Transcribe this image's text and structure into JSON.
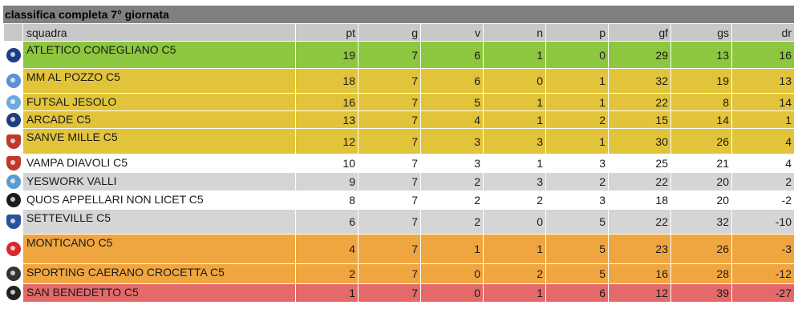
{
  "title": "classifica completa 7° giornata",
  "columns": {
    "team": "squadra",
    "pt": "pt",
    "g": "g",
    "v": "v",
    "n": "n",
    "p": "p",
    "gf": "gf",
    "gs": "gs",
    "dr": "dr"
  },
  "rows": [
    {
      "team": "ATLETICO CONEGLIANO C5",
      "pt": "19",
      "g": "7",
      "v": "6",
      "n": "1",
      "p": "0",
      "gf": "29",
      "gs": "13",
      "dr": "16",
      "zone_color": "#8dc63f",
      "logo_icon": "atletico-conegliano-logo-icon",
      "logo_color": "#1c3d8c"
    },
    {
      "team": "MM AL POZZO C5",
      "pt": "18",
      "g": "7",
      "v": "6",
      "n": "0",
      "p": "1",
      "gf": "32",
      "gs": "19",
      "dr": "13",
      "zone_color": "#e2c43a",
      "logo_icon": "mm-al-pozzo-logo-icon",
      "logo_color": "#5b8fd6"
    },
    {
      "team": "FUTSAL JESOLO",
      "pt": "16",
      "g": "7",
      "v": "5",
      "n": "1",
      "p": "1",
      "gf": "22",
      "gs": "8",
      "dr": "14",
      "zone_color": "#e2c43a",
      "logo_icon": "futsal-jesolo-logo-icon",
      "logo_color": "#6fa8dc"
    },
    {
      "team": "ARCADE C5",
      "pt": "13",
      "g": "7",
      "v": "4",
      "n": "1",
      "p": "2",
      "gf": "15",
      "gs": "14",
      "dr": "1",
      "zone_color": "#e2c43a",
      "logo_icon": "arcade-logo-icon",
      "logo_color": "#1f3f7a"
    },
    {
      "team": "SANVE MILLE C5",
      "pt": "12",
      "g": "7",
      "v": "3",
      "n": "3",
      "p": "1",
      "gf": "30",
      "gs": "26",
      "dr": "4",
      "zone_color": "#e2c43a",
      "logo_icon": "sanve-mille-logo-icon",
      "logo_color": "#c0392b"
    },
    {
      "team": "VAMPA DIAVOLI C5",
      "pt": "10",
      "g": "7",
      "v": "3",
      "n": "1",
      "p": "3",
      "gf": "25",
      "gs": "21",
      "dr": "4",
      "zone_color": "#ffffff",
      "logo_icon": "vampa-diavoli-logo-icon",
      "logo_color": "#c0392b"
    },
    {
      "team": "YESWORK VALLI",
      "pt": "9",
      "g": "7",
      "v": "2",
      "n": "3",
      "p": "2",
      "gf": "22",
      "gs": "20",
      "dr": "2",
      "zone_color": "#d5d5d5",
      "logo_icon": "yeswork-valli-logo-icon",
      "logo_color": "#5a9bd5"
    },
    {
      "team": "QUOS APPELLARI NON LICET C5",
      "pt": "8",
      "g": "7",
      "v": "2",
      "n": "2",
      "p": "3",
      "gf": "18",
      "gs": "20",
      "dr": "-2",
      "zone_color": "#ffffff",
      "logo_icon": "quos-appellari-logo-icon",
      "logo_color": "#1a1a1a"
    },
    {
      "team": "SETTEVILLE C5",
      "pt": "6",
      "g": "7",
      "v": "2",
      "n": "0",
      "p": "5",
      "gf": "22",
      "gs": "32",
      "dr": "-10",
      "zone_color": "#d5d5d5",
      "logo_icon": "setteville-logo-icon",
      "logo_color": "#2c4f9e"
    },
    {
      "team": "MONTICANO C5",
      "pt": "4",
      "g": "7",
      "v": "1",
      "n": "1",
      "p": "5",
      "gf": "23",
      "gs": "26",
      "dr": "-3",
      "zone_color": "#f0a640",
      "logo_icon": "monticano-logo-icon",
      "logo_color": "#d8282e"
    },
    {
      "team": "SPORTING CAERANO CROCETTA C5",
      "pt": "2",
      "g": "7",
      "v": "0",
      "n": "2",
      "p": "5",
      "gf": "16",
      "gs": "28",
      "dr": "-12",
      "zone_color": "#f0a640",
      "logo_icon": "sporting-caerano-logo-icon",
      "logo_color": "#333333"
    },
    {
      "team": "SAN BENEDETTO C5",
      "pt": "1",
      "g": "7",
      "v": "0",
      "n": "1",
      "p": "6",
      "gf": "12",
      "gs": "39",
      "dr": "-27",
      "zone_color": "#e46a6a",
      "logo_icon": "san-benedetto-logo-icon",
      "logo_color": "#222222"
    }
  ]
}
